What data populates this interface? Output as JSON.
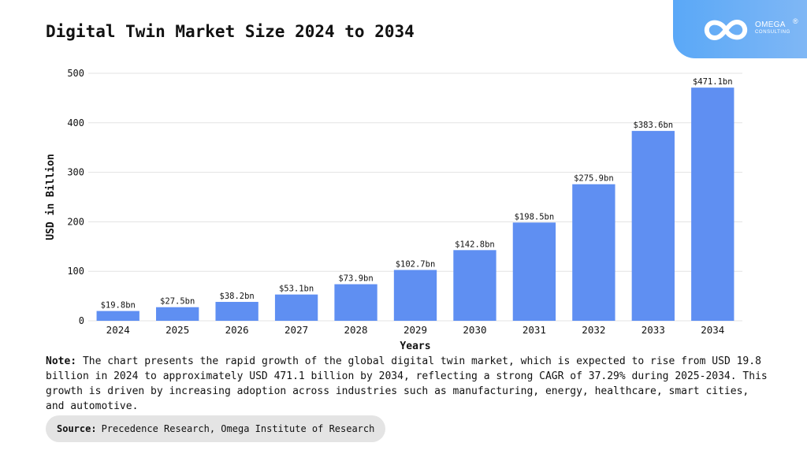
{
  "header": {
    "title": "Digital Twin Market Size 2024 to 2034"
  },
  "logo": {
    "name": "OMEGA",
    "subtitle": "CONSULTING",
    "registered": "®",
    "icon": "infinity-logo-icon",
    "background_color": "#6ab0f6"
  },
  "chart_data": {
    "type": "bar",
    "title": "Digital Twin Market Size 2024 to 2034",
    "xlabel": "Years",
    "ylabel": "USD in Billion",
    "categories": [
      "2024",
      "2025",
      "2026",
      "2027",
      "2028",
      "2029",
      "2030",
      "2031",
      "2032",
      "2033",
      "2034"
    ],
    "values": [
      19.8,
      27.5,
      38.2,
      53.1,
      73.9,
      102.7,
      142.8,
      198.5,
      275.9,
      383.6,
      471.1
    ],
    "data_labels": [
      "$19.8bn",
      "$27.5bn",
      "$38.2bn",
      "$53.1bn",
      "$73.9bn",
      "$102.7bn",
      "$142.8bn",
      "$198.5bn",
      "$275.9bn",
      "$383.6bn",
      "$471.1bn"
    ],
    "yticks": [
      0,
      100,
      200,
      300,
      400,
      500
    ],
    "ylim": [
      0,
      500
    ],
    "grid": true,
    "bar_color": "#5f8ff2",
    "grid_color": "#e3e3e3"
  },
  "note": {
    "label": "Note:",
    "text": "The chart presents the rapid growth of the global digital twin market, which is expected to rise from USD 19.8 billion in 2024 to approximately USD 471.1 billion by 2034, reflecting a strong CAGR of 37.29% during 2025-2034. This growth is driven by increasing adoption across industries such as manufacturing, energy, healthcare, smart cities, and automotive."
  },
  "source": {
    "label": "Source:",
    "text": "Precedence Research, Omega Institute of Research"
  }
}
